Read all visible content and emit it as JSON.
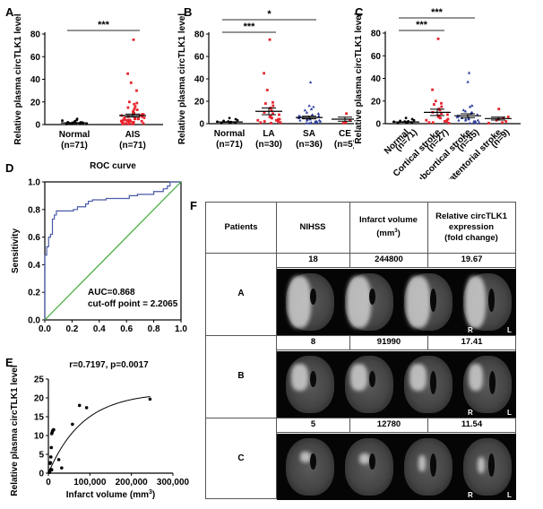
{
  "panels": {
    "A": {
      "letter": "A"
    },
    "B": {
      "letter": "B"
    },
    "C": {
      "letter": "C"
    },
    "D": {
      "letter": "D"
    },
    "E": {
      "letter": "E"
    },
    "F": {
      "letter": "F"
    }
  },
  "colors": {
    "normal": "#000000",
    "red": "#e8232c",
    "blue": "#2e3e9c",
    "roc": "#4a5aa8",
    "diag": "#3aaa35"
  },
  "chart_data": [
    {
      "id": "A",
      "type": "scatter",
      "title": "",
      "ylabel": "Relative plasma circTLK1 level",
      "ylim": [
        0,
        80
      ],
      "yticks": [
        "0",
        "20",
        "40",
        "60",
        "80"
      ],
      "categories": [
        "Normal\n(n=71)",
        "AIS\n(n=71)"
      ],
      "category_lines": [
        [
          "Normal",
          "(n=71)"
        ],
        [
          "AIS",
          "(n=71)"
        ]
      ],
      "groups": [
        {
          "name": "Normal",
          "n": 71,
          "mean": 1.5,
          "sem": 0.2,
          "color": "#000000",
          "marker": "dot",
          "points": [
            0.5,
            0.8,
            1,
            1.2,
            1.5,
            1.8,
            2,
            2.2,
            2.5,
            3,
            3.5,
            4,
            5,
            1,
            1.3,
            0.9,
            1.7,
            2.1,
            0.6,
            1.1
          ]
        },
        {
          "name": "AIS",
          "n": 71,
          "mean": 8,
          "sem": 1.3,
          "color": "#e8232c",
          "marker": "square",
          "points": [
            75,
            45,
            37,
            30,
            20,
            19,
            18,
            16,
            15,
            14,
            13,
            12,
            11,
            10,
            10,
            9,
            9,
            8,
            8,
            7,
            7,
            6,
            6,
            6,
            5,
            5,
            5,
            5,
            4,
            4,
            4,
            4,
            3,
            3,
            3,
            3,
            3,
            2,
            2,
            2,
            2,
            2,
            1,
            1,
            1,
            1,
            1,
            0.5,
            0.5,
            0.5
          ]
        }
      ],
      "significance": [
        {
          "from": "Normal",
          "to": "AIS",
          "label": "***"
        }
      ]
    },
    {
      "id": "B",
      "type": "scatter",
      "ylabel": "Relative plasma circTLK1 level",
      "ylim": [
        0,
        80
      ],
      "yticks": [
        "0",
        "20",
        "40",
        "60",
        "80"
      ],
      "category_lines": [
        [
          "Normal",
          "(n=71)"
        ],
        [
          "LA",
          "(n=30)"
        ],
        [
          "SA",
          "(n=36)"
        ],
        [
          "CE",
          "(n=5)"
        ]
      ],
      "groups": [
        {
          "name": "Normal",
          "n": 71,
          "mean": 1.5,
          "sem": 0.2,
          "color": "#000000",
          "marker": "dot",
          "points": [
            0.5,
            1,
            1.5,
            2,
            2.5,
            3,
            4,
            5,
            1.2,
            0.8,
            1.8
          ]
        },
        {
          "name": "LA",
          "n": 30,
          "mean": 11,
          "sem": 3,
          "color": "#e8232c",
          "marker": "square",
          "points": [
            75,
            45,
            30,
            19,
            18,
            16,
            14,
            12,
            10,
            9,
            8,
            7,
            6,
            5,
            5,
            4,
            4,
            3,
            3,
            2,
            2,
            1,
            1,
            0.5
          ]
        },
        {
          "name": "SA",
          "n": 36,
          "mean": 5.5,
          "sem": 1.2,
          "color": "#2e3e9c",
          "marker": "triangle",
          "points": [
            37,
            16,
            15,
            13,
            12,
            10,
            9,
            8,
            7,
            7,
            6,
            6,
            5,
            5,
            4,
            4,
            4,
            3,
            3,
            3,
            2,
            2,
            2,
            1,
            1,
            1,
            0.5,
            0.5
          ]
        },
        {
          "name": "CE",
          "n": 5,
          "mean": 4,
          "sem": 1.8,
          "color": "#e8232c",
          "marker": "square",
          "points": [
            9,
            8,
            3,
            1,
            0.5
          ]
        }
      ],
      "significance": [
        {
          "from": "Normal",
          "to": "LA",
          "label": "***"
        },
        {
          "from": "Normal",
          "to": "SA",
          "label": "*"
        }
      ]
    },
    {
      "id": "C",
      "type": "scatter",
      "ylabel": "Relative plasma circTLK1 level",
      "ylim": [
        0,
        80
      ],
      "yticks": [
        "0",
        "20",
        "40",
        "60",
        "80"
      ],
      "category_lines": [
        [
          "Normal",
          "(n=71)"
        ],
        [
          "Cortical stroke",
          "(n=27)"
        ],
        [
          "Subcortical stroke",
          "(n=35)"
        ],
        [
          "Infratentorial stroke",
          "(n=9)"
        ]
      ],
      "groups": [
        {
          "name": "Normal",
          "n": 71,
          "mean": 1.5,
          "sem": 0.2,
          "color": "#000000",
          "marker": "dot",
          "points": [
            0.5,
            1,
            1.5,
            2,
            2.5,
            3,
            4,
            5,
            1.2,
            0.8,
            1.8,
            2.2
          ]
        },
        {
          "name": "Cortical stroke",
          "n": 27,
          "mean": 10,
          "sem": 2.8,
          "color": "#e8232c",
          "marker": "square",
          "points": [
            75,
            30,
            20,
            18,
            17,
            15,
            13,
            12,
            10,
            9,
            8,
            7,
            6,
            5,
            5,
            4,
            3,
            3,
            2,
            2,
            1,
            1,
            0.5
          ]
        },
        {
          "name": "Subcortical stroke",
          "n": 35,
          "mean": 7,
          "sem": 1.7,
          "color": "#2e3e9c",
          "marker": "triangle",
          "points": [
            45,
            37,
            16,
            15,
            12,
            11,
            10,
            9,
            8,
            7,
            7,
            6,
            6,
            5,
            5,
            4,
            4,
            3,
            3,
            3,
            2,
            2,
            1,
            1,
            0.5,
            0.5
          ]
        },
        {
          "name": "Infratentorial stroke",
          "n": 9,
          "mean": 4.5,
          "sem": 1.3,
          "color": "#e8232c",
          "marker": "square",
          "points": [
            13,
            6,
            5,
            4,
            3,
            2,
            1,
            0.5
          ]
        }
      ],
      "significance": [
        {
          "from": "Normal",
          "to": "Cortical stroke",
          "label": "***"
        },
        {
          "from": "Normal",
          "to": "Subcortical stroke",
          "label": "***"
        }
      ]
    },
    {
      "id": "D",
      "type": "line",
      "title": "ROC curve",
      "xlabel": "1 - Specificity",
      "ylabel": "Sensitivity",
      "xlim": [
        0,
        1
      ],
      "ylim": [
        0,
        1
      ],
      "xticks": [
        "0.0",
        "0.2",
        "0.4",
        "0.6",
        "0.8",
        "1.0"
      ],
      "yticks": [
        "0.0",
        "0.2",
        "0.4",
        "0.6",
        "0.8",
        "1.0"
      ],
      "annotations": [
        "AUC=0.868",
        "cut-off point = 2.2065"
      ],
      "series": [
        {
          "name": "ROC",
          "color": "#4a5aa8",
          "x": [
            0,
            0,
            0.014,
            0.014,
            0.028,
            0.028,
            0.042,
            0.042,
            0.056,
            0.056,
            0.07,
            0.07,
            0.085,
            0.085,
            0.21,
            0.21,
            0.24,
            0.24,
            0.3,
            0.3,
            0.32,
            0.32,
            0.35,
            0.35,
            0.45,
            0.45,
            0.62,
            0.62,
            0.68,
            0.68,
            0.8,
            0.8,
            0.87,
            0.87,
            0.9,
            0.9,
            0.92,
            0.92,
            1
          ],
          "y": [
            0,
            0.47,
            0.47,
            0.53,
            0.53,
            0.6,
            0.6,
            0.62,
            0.62,
            0.73,
            0.73,
            0.76,
            0.76,
            0.79,
            0.79,
            0.8,
            0.8,
            0.82,
            0.82,
            0.84,
            0.84,
            0.86,
            0.86,
            0.87,
            0.87,
            0.88,
            0.88,
            0.9,
            0.9,
            0.91,
            0.91,
            0.93,
            0.93,
            0.95,
            0.95,
            0.97,
            0.97,
            1,
            1
          ]
        },
        {
          "name": "Reference",
          "color": "#3aaa35",
          "x": [
            0,
            1
          ],
          "y": [
            0,
            1
          ]
        }
      ]
    },
    {
      "id": "E",
      "type": "scatter",
      "title": "r=0.7197, p=0.0017",
      "xlabel": "Infarct volume (mm³)",
      "xlabel_main": "Infarct volume (mm",
      "xlabel_sup": "3",
      "xlabel_end": ")",
      "ylabel": "Relative plasma circTLK1 level",
      "xlim": [
        0,
        300000
      ],
      "ylim": [
        0,
        25
      ],
      "xticks": [
        "0",
        "100,000",
        "200,000",
        "300,000"
      ],
      "yticks": [
        "0",
        "5",
        "10",
        "15",
        "20",
        "25"
      ],
      "x": [
        2000,
        3000,
        4000,
        5000,
        6000,
        7000,
        8000,
        9000,
        10000,
        12000,
        5000,
        6000,
        8000,
        12780,
        25000,
        32000,
        58000,
        75000,
        91990,
        244800,
        3000,
        4000
      ],
      "y": [
        0.2,
        0.5,
        2.8,
        2.8,
        4.3,
        6.8,
        10.5,
        10.8,
        11.2,
        11.5,
        0.8,
        1.0,
        0.9,
        11.54,
        3.6,
        1.4,
        13,
        18,
        17.41,
        19.67,
        0.3,
        2.6
      ],
      "fit": {
        "type": "saturation",
        "ymax": 21.5,
        "k": 1.2e-05
      }
    }
  ],
  "table": {
    "headers": [
      "Patients",
      "NIHSS",
      "Infarct volume (mm³)",
      "Relative circTLK1 expression (fold change)"
    ],
    "header_lines": {
      "patients": "Patients",
      "nihss": "NIHSS",
      "volume1": "Infarct volume",
      "volume2": "(mm",
      "volume_sup": "3",
      "volume3": ")",
      "expr1": "Relative circTLK1",
      "expr2": "expression",
      "expr3": "(fold change)"
    },
    "rows": [
      {
        "patient": "A",
        "nihss": "18",
        "volume": "244800",
        "expression": "19.67",
        "r_label": "R",
        "l_label": "L"
      },
      {
        "patient": "B",
        "nihss": "8",
        "volume": "91990",
        "expression": "17.41",
        "r_label": "R",
        "l_label": "L"
      },
      {
        "patient": "C",
        "nihss": "5",
        "volume": "12780",
        "expression": "11.54",
        "r_label": "R",
        "l_label": "L"
      }
    ]
  }
}
